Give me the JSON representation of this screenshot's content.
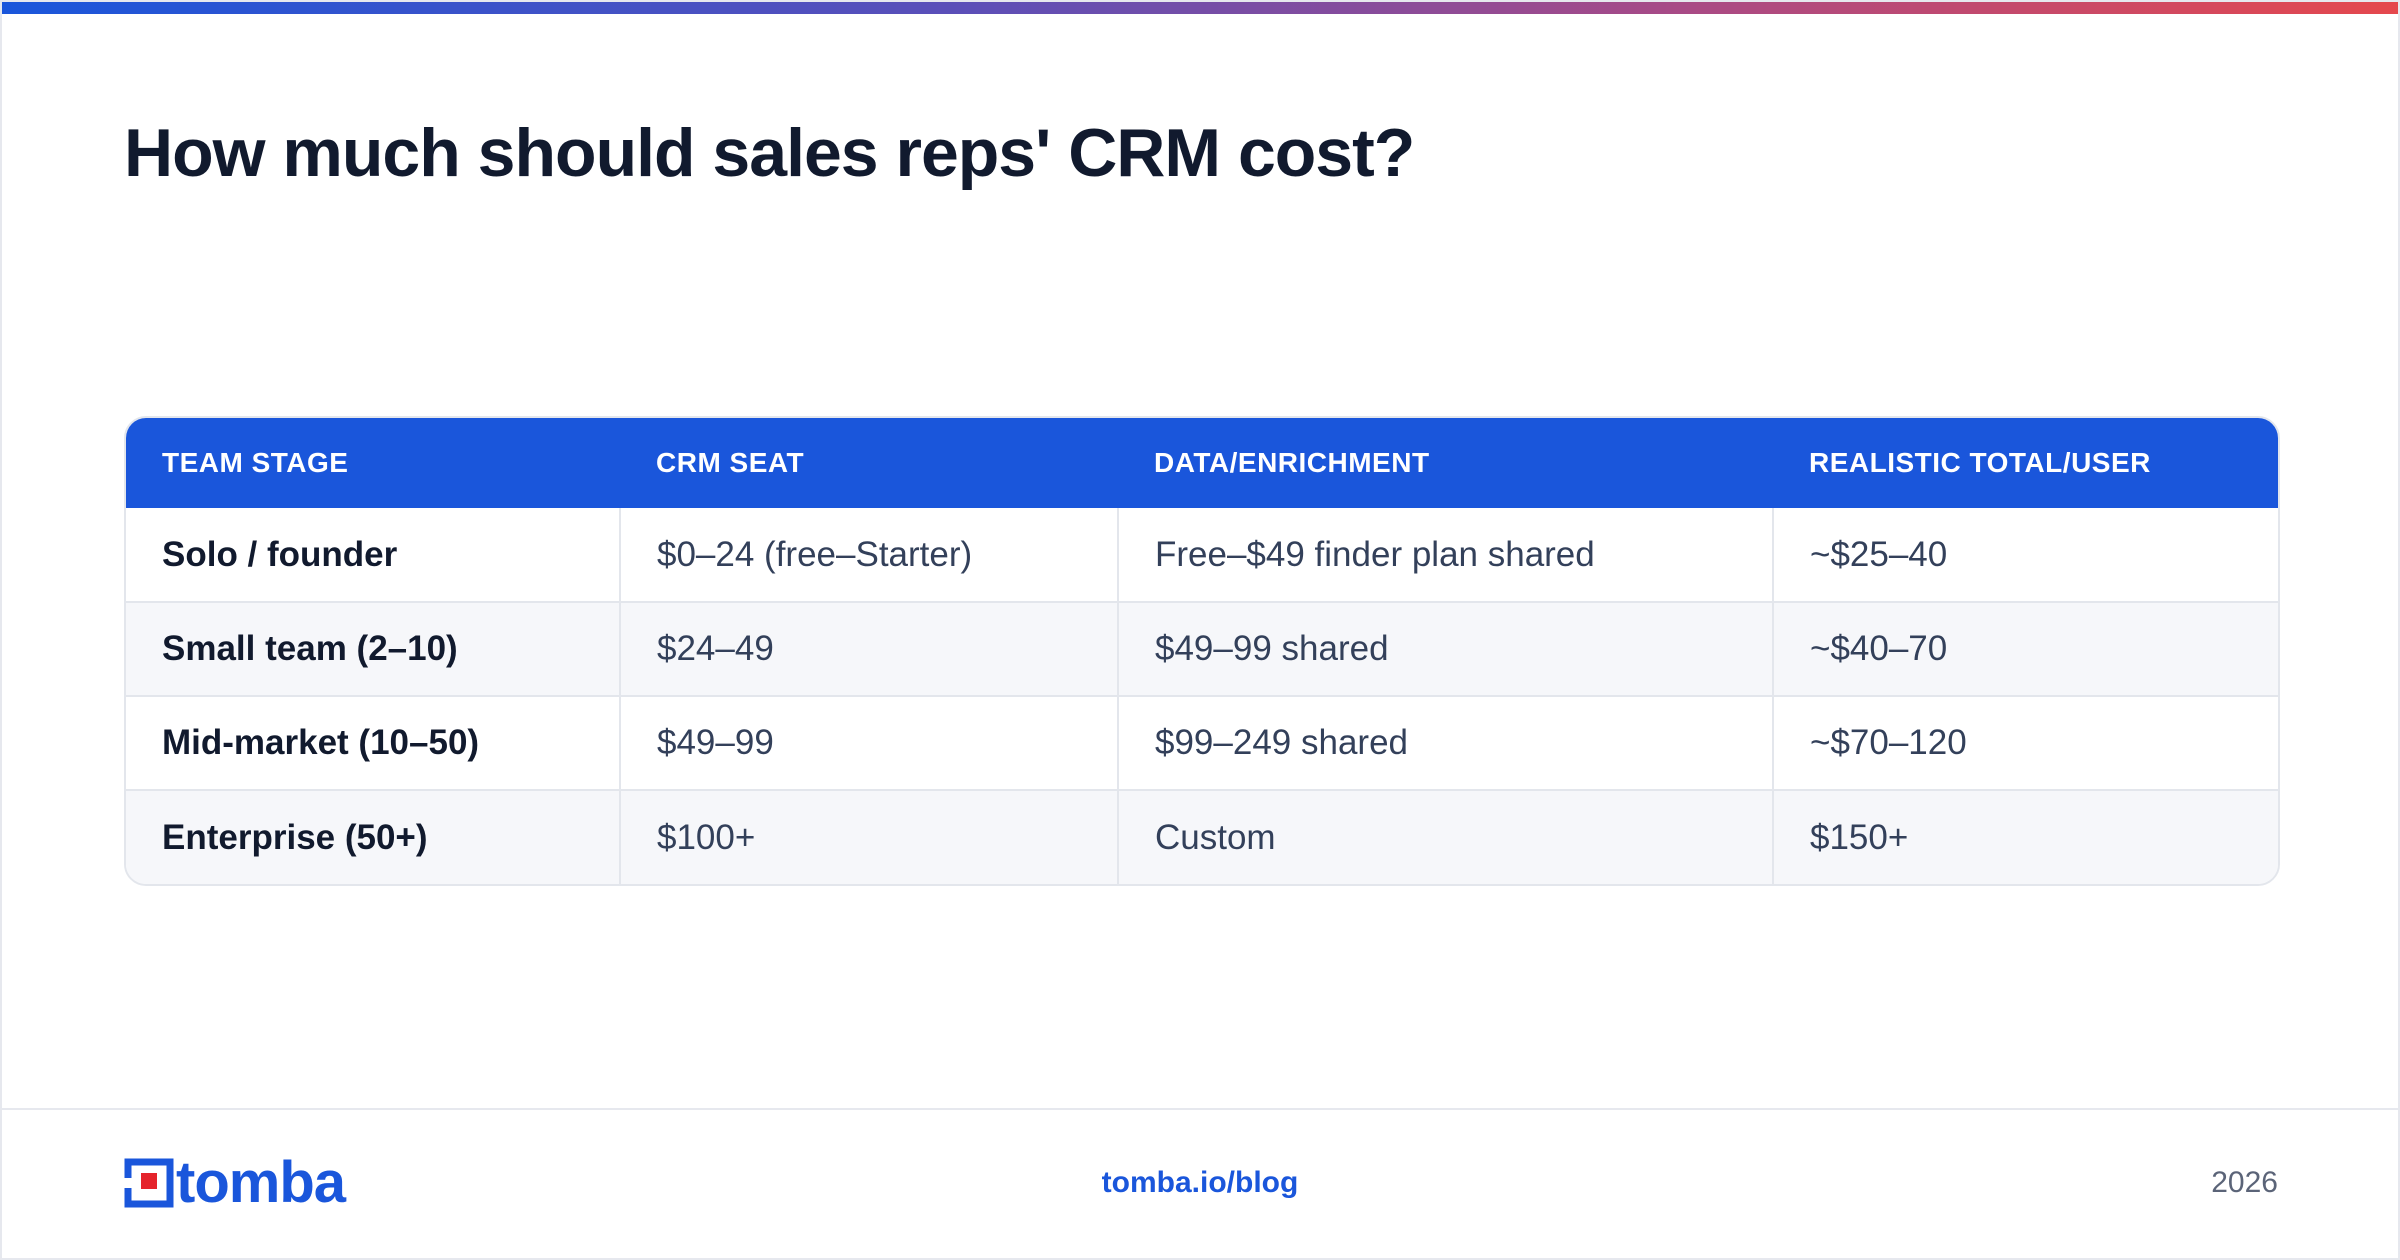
{
  "title": "How much should sales reps' CRM cost?",
  "table": {
    "headers": [
      "TEAM STAGE",
      "CRM SEAT",
      "DATA/ENRICHMENT",
      "REALISTIC TOTAL/USER"
    ],
    "rows": [
      [
        "Solo / founder",
        "$0–24 (free–Starter)",
        "Free–$49 finder plan shared",
        "~$25–40"
      ],
      [
        "Small team (2–10)",
        "$24–49",
        "$49–99 shared",
        "~$40–70"
      ],
      [
        "Mid-market (10–50)",
        "$49–99",
        "$99–249 shared",
        "~$70–120"
      ],
      [
        "Enterprise (50+)",
        "$100+",
        "Custom",
        "$150+"
      ]
    ]
  },
  "footer": {
    "logo_text": "tomba",
    "logo_icon": "tomba-logo-icon",
    "link": "tomba.io/blog",
    "year": "2026"
  },
  "colors": {
    "accent": "#1a56db",
    "gradient_start": "#1a56db",
    "gradient_end": "#e5484d",
    "logo_red": "#e5232b",
    "title": "#111a2e"
  }
}
